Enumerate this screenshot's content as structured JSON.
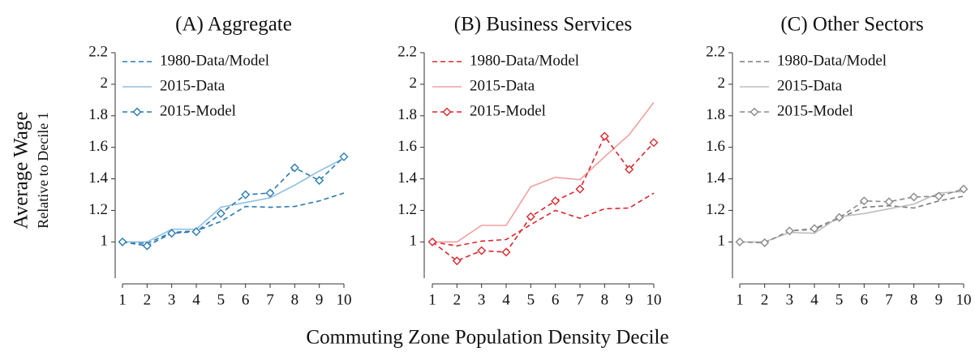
{
  "ylabel": "Average Wage",
  "ylabel_sub": "Relative to Decile 1",
  "xlabel": "Commuting Zone Population Density Decile",
  "chart_data": [
    {
      "type": "line",
      "title": "(A) Aggregate",
      "x": [
        1,
        2,
        3,
        4,
        5,
        6,
        7,
        8,
        9,
        10
      ],
      "xlim": [
        1,
        10
      ],
      "xticks": [
        1,
        2,
        3,
        4,
        5,
        6,
        7,
        8,
        9,
        10
      ],
      "ylim": [
        0.77,
        2.2
      ],
      "yticks": [
        1,
        1.2,
        1.4,
        1.6,
        1.8,
        2,
        2.2
      ],
      "legend": "upper left",
      "series": [
        {
          "name": "1980-Data/Model",
          "color": "#2a7ab0",
          "style": "dashed",
          "values": [
            1,
            0.99,
            1.06,
            1.07,
            1.13,
            1.225,
            1.22,
            1.225,
            1.26,
            1.31
          ]
        },
        {
          "name": "2015-Data",
          "color": "#8ebfe0",
          "style": "solid",
          "values": [
            1,
            1.0,
            1.08,
            1.08,
            1.22,
            1.25,
            1.28,
            1.36,
            1.45,
            1.53
          ]
        },
        {
          "name": "2015-Model",
          "color": "#2a7ab0",
          "style": "dashed",
          "marker": "diamond",
          "values": [
            1,
            0.975,
            1.055,
            1.065,
            1.18,
            1.3,
            1.31,
            1.47,
            1.39,
            1.54
          ]
        }
      ]
    },
    {
      "type": "line",
      "title": "(B) Business Services",
      "x": [
        1,
        2,
        3,
        4,
        5,
        6,
        7,
        8,
        9,
        10
      ],
      "xlim": [
        1,
        10
      ],
      "xticks": [
        1,
        2,
        3,
        4,
        5,
        6,
        7,
        8,
        9,
        10
      ],
      "ylim": [
        0.77,
        2.2
      ],
      "yticks": [
        1,
        1.2,
        1.4,
        1.6,
        1.8,
        2,
        2.2
      ],
      "legend": "upper left",
      "series": [
        {
          "name": "1980-Data/Model",
          "color": "#d9272e",
          "style": "dashed",
          "values": [
            1,
            0.975,
            1.005,
            1.015,
            1.11,
            1.2,
            1.15,
            1.21,
            1.215,
            1.31
          ]
        },
        {
          "name": "2015-Data",
          "color": "#f0a0a0",
          "style": "solid",
          "values": [
            1,
            1.0,
            1.105,
            1.105,
            1.35,
            1.41,
            1.395,
            1.54,
            1.68,
            1.885
          ]
        },
        {
          "name": "2015-Model",
          "color": "#d9272e",
          "style": "dashed",
          "marker": "diamond",
          "values": [
            1,
            0.88,
            0.945,
            0.935,
            1.16,
            1.26,
            1.335,
            1.67,
            1.46,
            1.63
          ]
        }
      ]
    },
    {
      "type": "line",
      "title": "(C) Other Sectors",
      "x": [
        1,
        2,
        3,
        4,
        5,
        6,
        7,
        8,
        9,
        10
      ],
      "xlim": [
        1,
        10
      ],
      "xticks": [
        1,
        2,
        3,
        4,
        5,
        6,
        7,
        8,
        9,
        10
      ],
      "ylim": [
        0.77,
        2.2
      ],
      "yticks": [
        1,
        1.2,
        1.4,
        1.6,
        1.8,
        2,
        2.2
      ],
      "legend": "upper left",
      "series": [
        {
          "name": "1980-Data/Model",
          "color": "#7a7a7a",
          "style": "dashed",
          "values": [
            1,
            0.995,
            1.07,
            1.08,
            1.15,
            1.22,
            1.23,
            1.215,
            1.26,
            1.29
          ]
        },
        {
          "name": "2015-Data",
          "color": "#bdbdbd",
          "style": "solid",
          "values": [
            1,
            1.0,
            1.06,
            1.055,
            1.16,
            1.18,
            1.21,
            1.24,
            1.31,
            1.32
          ]
        },
        {
          "name": "2015-Model",
          "color": "#8a8a8a",
          "style": "dashed",
          "marker": "diamond",
          "values": [
            1,
            0.995,
            1.07,
            1.085,
            1.155,
            1.26,
            1.255,
            1.285,
            1.29,
            1.335
          ]
        }
      ]
    }
  ]
}
